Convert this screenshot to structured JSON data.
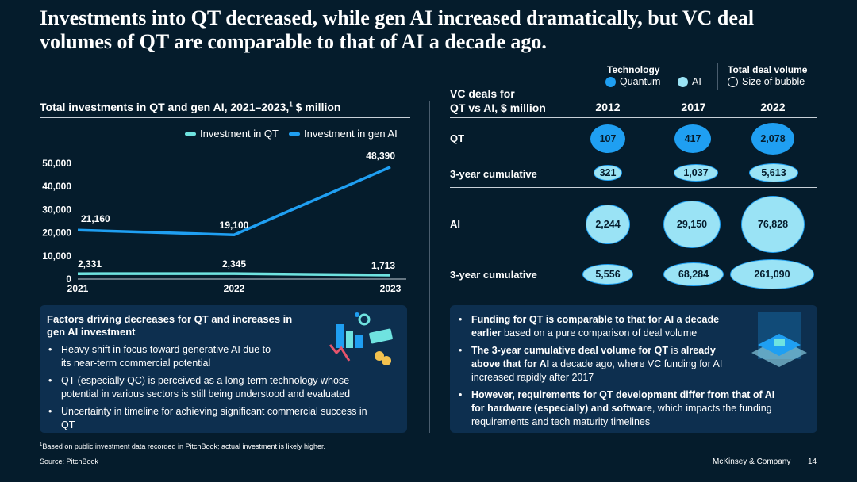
{
  "title": "Investments into QT decreased, while gen AI increased dramatically, but VC deal volumes of QT are comparable to that of AI a decade ago.",
  "left_chart": {
    "heading": "Total investments in QT and gen AI, 2021–2023,",
    "heading_sup": "1",
    "heading_unit": " $ million"
  },
  "chart_data": [
    {
      "type": "line",
      "title": "Total investments in QT and gen AI, 2021–2023, $ million",
      "x": [
        "2021",
        "2022",
        "2023"
      ],
      "ylim": [
        0,
        50000
      ],
      "yticks": [
        "0",
        "10,000",
        "20,000",
        "30,000",
        "40,000",
        "50,000"
      ],
      "ytick_values": [
        0,
        10000,
        20000,
        30000,
        40000,
        50000
      ],
      "series": [
        {
          "name": "Investment in QT",
          "values": [
            2331,
            2345,
            1713
          ],
          "labels": [
            "2,331",
            "2,345",
            "1,713"
          ],
          "color": "#6fe3e0"
        },
        {
          "name": "Investment in gen AI",
          "values": [
            21160,
            19100,
            48390
          ],
          "labels": [
            "21,160",
            "19,100",
            "48,390"
          ],
          "color": "#1f9ff2"
        }
      ],
      "legend": "top-right"
    },
    {
      "type": "bubble",
      "title": "VC deals for QT vs AI, $ million",
      "columns": [
        "2012",
        "2017",
        "2022"
      ],
      "rows": [
        {
          "label": "QT",
          "tech": "Quantum",
          "values": [
            "107",
            "417",
            "2,078"
          ]
        },
        {
          "label": "3-year cumulative",
          "tech": "Quantum",
          "values": [
            "321",
            "1,037",
            "5,613"
          ]
        },
        {
          "label": "AI",
          "tech": "AI",
          "values": [
            "2,244",
            "29,150",
            "76,828"
          ]
        },
        {
          "label": "3-year cumulative",
          "tech": "AI",
          "values": [
            "5,556",
            "68,284",
            "261,090"
          ]
        }
      ]
    }
  ],
  "vc": {
    "heading_line1": "VC deals for",
    "heading_line2": "QT vs AI, $ million",
    "key": {
      "technology_title": "Technology",
      "quantum": "Quantum",
      "ai": "AI",
      "volume_title": "Total deal volume",
      "size": "Size of bubble"
    }
  },
  "left_panel": {
    "heading": "Factors driving decreases for QT and increases in gen AI investment",
    "bullets": [
      "Heavy shift in focus toward generative AI due to its near-term commercial potential",
      "QT (especially QC) is perceived as a long-term technology whose potential in various sectors is still being understood and evaluated",
      "Uncertainty in timeline for achieving significant commercial success in QT"
    ]
  },
  "right_panel": {
    "b1_bold": "Funding for QT is comparable to that for AI a decade earlier",
    "b1_rest": " based on a pure comparison of deal volume",
    "b2_bold": "The 3-year cumulative deal volume for QT",
    "b2_mid": " is ",
    "b2_bold2": "already above that for AI",
    "b2_rest": " a decade ago, where VC funding for AI increased rapidly after 2017",
    "b3_bold": "However, requirements for QT development differ from that of AI for hardware (especially) and software",
    "b3_rest": ", which impacts the funding requirements and tech maturity timelines"
  },
  "footnote": "Based on public investment data recorded in PitchBook; actual investment is likely higher.",
  "footnote_sup": "1",
  "source": "Source: PitchBook",
  "brand": "McKinsey & Company",
  "page": "14",
  "colors": {
    "background": "#051c2c",
    "panel": "#0d2f4f",
    "quantum": "#1f9ff2",
    "ai": "#9ae3f5",
    "qt_line": "#6fe3e0"
  }
}
